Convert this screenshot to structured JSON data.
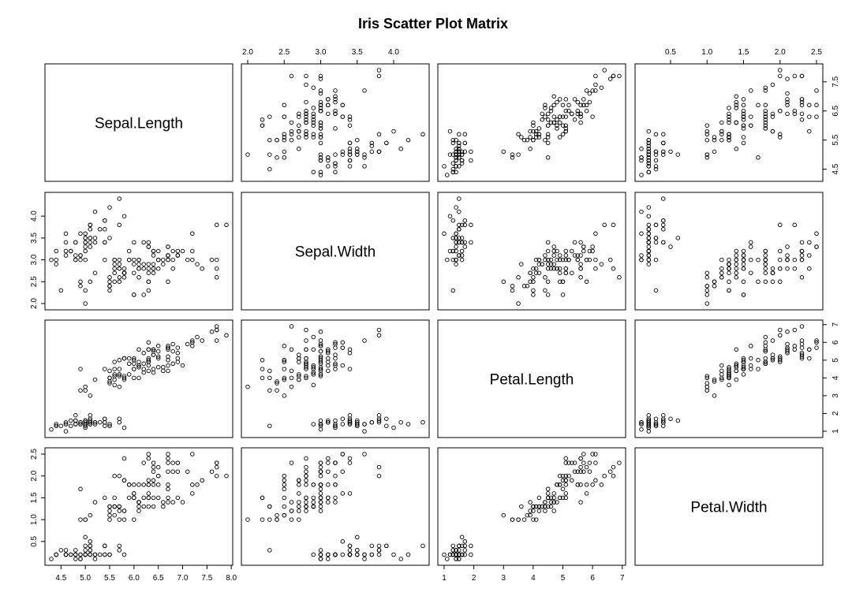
{
  "chart_data": {
    "type": "scatter",
    "title": "Iris Scatter Plot Matrix",
    "variables": [
      "Sepal.Length",
      "Sepal.Width",
      "Petal.Length",
      "Petal.Width"
    ],
    "ranges": [
      [
        4.3,
        7.9
      ],
      [
        2.0,
        4.4
      ],
      [
        1.0,
        6.9
      ],
      [
        0.1,
        2.5
      ]
    ],
    "ticks": [
      [
        4.5,
        5.0,
        5.5,
        6.0,
        6.5,
        7.0,
        7.5,
        8.0
      ],
      [
        2.0,
        2.5,
        3.0,
        3.5,
        4.0
      ],
      [
        1,
        2,
        3,
        4,
        5,
        6,
        7
      ],
      [
        0.5,
        1.0,
        1.5,
        2.0,
        2.5
      ]
    ],
    "tick_labels": [
      [
        "4.5",
        "5.0",
        "5.5",
        "6.0",
        "6.5",
        "7.0",
        "7.5",
        "8.0"
      ],
      [
        "2.0",
        "2.5",
        "3.0",
        "3.5",
        "4.0"
      ],
      [
        "1",
        "2",
        "3",
        "4",
        "5",
        "6",
        "7"
      ],
      [
        "0.5",
        "1.0",
        "1.5",
        "2.0",
        "2.5"
      ]
    ],
    "axis_sides": {
      "bottom": [
        0,
        2
      ],
      "top": [
        1,
        3
      ],
      "left": [
        1,
        3
      ],
      "right": [
        0,
        2
      ]
    },
    "right_ticks_sepal_length": [
      4.5,
      5.5,
      6.5,
      7.5
    ],
    "right_tick_labels_sepal_length": [
      "4.5",
      "5.5",
      "6.5",
      "7.5"
    ],
    "top_ticks_sepal_width": [
      2.0,
      2.5,
      3.0,
      3.5,
      4.0
    ],
    "top_tick_labels_sepal_width": [
      "2.0",
      "2.5",
      "3.0",
      "3.5",
      "4.0"
    ],
    "left_ticks_sepal_width": [
      2.0,
      2.5,
      3.0,
      3.5,
      4.0
    ],
    "left_tick_labels_sepal_width": [
      "2.0",
      "2.5",
      "3.0",
      "3.5",
      "4.0"
    ],
    "grid": false,
    "observations": [
      [
        5.1,
        3.5,
        1.4,
        0.2
      ],
      [
        4.9,
        3.0,
        1.4,
        0.2
      ],
      [
        4.7,
        3.2,
        1.3,
        0.2
      ],
      [
        4.6,
        3.1,
        1.5,
        0.2
      ],
      [
        5.0,
        3.6,
        1.4,
        0.2
      ],
      [
        5.4,
        3.9,
        1.7,
        0.4
      ],
      [
        4.6,
        3.4,
        1.4,
        0.3
      ],
      [
        5.0,
        3.4,
        1.5,
        0.2
      ],
      [
        4.4,
        2.9,
        1.4,
        0.2
      ],
      [
        4.9,
        3.1,
        1.5,
        0.1
      ],
      [
        5.4,
        3.7,
        1.5,
        0.2
      ],
      [
        4.8,
        3.4,
        1.6,
        0.2
      ],
      [
        4.8,
        3.0,
        1.4,
        0.1
      ],
      [
        4.3,
        3.0,
        1.1,
        0.1
      ],
      [
        5.8,
        4.0,
        1.2,
        0.2
      ],
      [
        5.7,
        4.4,
        1.5,
        0.4
      ],
      [
        5.4,
        3.9,
        1.3,
        0.4
      ],
      [
        5.1,
        3.5,
        1.4,
        0.3
      ],
      [
        5.7,
        3.8,
        1.7,
        0.3
      ],
      [
        5.1,
        3.8,
        1.5,
        0.3
      ],
      [
        5.4,
        3.4,
        1.7,
        0.2
      ],
      [
        5.1,
        3.7,
        1.5,
        0.4
      ],
      [
        4.6,
        3.6,
        1.0,
        0.2
      ],
      [
        5.1,
        3.3,
        1.7,
        0.5
      ],
      [
        4.8,
        3.4,
        1.9,
        0.2
      ],
      [
        5.0,
        3.0,
        1.6,
        0.2
      ],
      [
        5.0,
        3.4,
        1.6,
        0.4
      ],
      [
        5.2,
        3.5,
        1.5,
        0.2
      ],
      [
        5.2,
        3.4,
        1.4,
        0.2
      ],
      [
        4.7,
        3.2,
        1.6,
        0.2
      ],
      [
        4.8,
        3.1,
        1.6,
        0.2
      ],
      [
        5.4,
        3.4,
        1.5,
        0.4
      ],
      [
        5.2,
        4.1,
        1.5,
        0.1
      ],
      [
        5.5,
        4.2,
        1.4,
        0.2
      ],
      [
        4.9,
        3.1,
        1.5,
        0.2
      ],
      [
        5.0,
        3.2,
        1.2,
        0.2
      ],
      [
        5.5,
        3.5,
        1.3,
        0.2
      ],
      [
        4.9,
        3.6,
        1.4,
        0.1
      ],
      [
        4.4,
        3.0,
        1.3,
        0.2
      ],
      [
        5.1,
        3.4,
        1.5,
        0.2
      ],
      [
        5.0,
        3.5,
        1.3,
        0.3
      ],
      [
        4.5,
        2.3,
        1.3,
        0.3
      ],
      [
        4.4,
        3.2,
        1.3,
        0.2
      ],
      [
        5.0,
        3.5,
        1.6,
        0.6
      ],
      [
        5.1,
        3.8,
        1.9,
        0.4
      ],
      [
        4.8,
        3.0,
        1.4,
        0.3
      ],
      [
        5.1,
        3.8,
        1.6,
        0.2
      ],
      [
        4.6,
        3.2,
        1.4,
        0.2
      ],
      [
        5.3,
        3.7,
        1.5,
        0.2
      ],
      [
        5.0,
        3.3,
        1.4,
        0.2
      ],
      [
        7.0,
        3.2,
        4.7,
        1.4
      ],
      [
        6.4,
        3.2,
        4.5,
        1.5
      ],
      [
        6.9,
        3.1,
        4.9,
        1.5
      ],
      [
        5.5,
        2.3,
        4.0,
        1.3
      ],
      [
        6.5,
        2.8,
        4.6,
        1.5
      ],
      [
        5.7,
        2.8,
        4.5,
        1.3
      ],
      [
        6.3,
        3.3,
        4.7,
        1.6
      ],
      [
        4.9,
        2.4,
        3.3,
        1.0
      ],
      [
        6.6,
        2.9,
        4.6,
        1.3
      ],
      [
        5.2,
        2.7,
        3.9,
        1.4
      ],
      [
        5.0,
        2.0,
        3.5,
        1.0
      ],
      [
        5.9,
        3.0,
        4.2,
        1.5
      ],
      [
        6.0,
        2.2,
        4.0,
        1.0
      ],
      [
        6.1,
        2.9,
        4.7,
        1.4
      ],
      [
        5.6,
        2.9,
        3.6,
        1.3
      ],
      [
        6.7,
        3.1,
        4.4,
        1.4
      ],
      [
        5.6,
        3.0,
        4.5,
        1.5
      ],
      [
        5.8,
        2.7,
        4.1,
        1.0
      ],
      [
        6.2,
        2.2,
        4.5,
        1.5
      ],
      [
        5.6,
        2.5,
        3.9,
        1.1
      ],
      [
        5.9,
        3.2,
        4.8,
        1.8
      ],
      [
        6.1,
        2.8,
        4.0,
        1.3
      ],
      [
        6.3,
        2.5,
        4.9,
        1.5
      ],
      [
        6.1,
        2.8,
        4.7,
        1.2
      ],
      [
        6.4,
        2.9,
        4.3,
        1.3
      ],
      [
        6.6,
        3.0,
        4.4,
        1.4
      ],
      [
        6.8,
        2.8,
        4.8,
        1.4
      ],
      [
        6.7,
        3.0,
        5.0,
        1.7
      ],
      [
        6.0,
        2.9,
        4.5,
        1.5
      ],
      [
        5.7,
        2.6,
        3.5,
        1.0
      ],
      [
        5.5,
        2.4,
        3.8,
        1.1
      ],
      [
        5.5,
        2.4,
        3.7,
        1.0
      ],
      [
        5.8,
        2.7,
        3.9,
        1.2
      ],
      [
        6.0,
        2.7,
        5.1,
        1.6
      ],
      [
        5.4,
        3.0,
        4.5,
        1.5
      ],
      [
        6.0,
        3.4,
        4.5,
        1.6
      ],
      [
        6.7,
        3.1,
        4.7,
        1.5
      ],
      [
        6.3,
        2.3,
        4.4,
        1.3
      ],
      [
        5.6,
        3.0,
        4.1,
        1.3
      ],
      [
        5.5,
        2.5,
        4.0,
        1.3
      ],
      [
        5.5,
        2.6,
        4.4,
        1.2
      ],
      [
        6.1,
        3.0,
        4.6,
        1.4
      ],
      [
        5.8,
        2.6,
        4.0,
        1.2
      ],
      [
        5.0,
        2.3,
        3.3,
        1.0
      ],
      [
        5.6,
        2.7,
        4.2,
        1.3
      ],
      [
        5.7,
        3.0,
        4.2,
        1.2
      ],
      [
        5.7,
        2.9,
        4.2,
        1.3
      ],
      [
        6.2,
        2.9,
        4.3,
        1.3
      ],
      [
        5.1,
        2.5,
        3.0,
        1.1
      ],
      [
        5.7,
        2.8,
        4.1,
        1.3
      ],
      [
        6.3,
        3.3,
        6.0,
        2.5
      ],
      [
        5.8,
        2.7,
        5.1,
        1.9
      ],
      [
        7.1,
        3.0,
        5.9,
        2.1
      ],
      [
        6.3,
        2.9,
        5.6,
        1.8
      ],
      [
        6.5,
        3.0,
        5.8,
        2.2
      ],
      [
        7.6,
        3.0,
        6.6,
        2.1
      ],
      [
        4.9,
        2.5,
        4.5,
        1.7
      ],
      [
        7.3,
        2.9,
        6.3,
        1.8
      ],
      [
        6.7,
        2.5,
        5.8,
        1.8
      ],
      [
        7.2,
        3.6,
        6.1,
        2.5
      ],
      [
        6.5,
        3.2,
        5.1,
        2.0
      ],
      [
        6.4,
        2.7,
        5.3,
        1.9
      ],
      [
        6.8,
        3.0,
        5.5,
        2.1
      ],
      [
        5.7,
        2.5,
        5.0,
        2.0
      ],
      [
        5.8,
        2.8,
        5.1,
        2.4
      ],
      [
        6.4,
        3.2,
        5.3,
        2.3
      ],
      [
        6.5,
        3.0,
        5.5,
        1.8
      ],
      [
        7.7,
        3.8,
        6.7,
        2.2
      ],
      [
        7.7,
        2.6,
        6.9,
        2.3
      ],
      [
        6.0,
        2.2,
        5.0,
        1.5
      ],
      [
        6.9,
        3.2,
        5.7,
        2.3
      ],
      [
        5.6,
        2.8,
        4.9,
        2.0
      ],
      [
        7.7,
        2.8,
        6.7,
        2.0
      ],
      [
        6.3,
        2.7,
        4.9,
        1.8
      ],
      [
        6.7,
        3.3,
        5.7,
        2.1
      ],
      [
        7.2,
        3.2,
        6.0,
        1.8
      ],
      [
        6.2,
        2.8,
        4.8,
        1.8
      ],
      [
        6.1,
        3.0,
        4.9,
        1.8
      ],
      [
        6.4,
        2.8,
        5.6,
        2.1
      ],
      [
        7.2,
        3.0,
        5.8,
        1.6
      ],
      [
        7.4,
        2.8,
        6.1,
        1.9
      ],
      [
        7.9,
        3.8,
        6.4,
        2.0
      ],
      [
        6.4,
        2.8,
        5.6,
        2.2
      ],
      [
        6.3,
        2.8,
        5.1,
        1.5
      ],
      [
        6.1,
        2.6,
        5.6,
        1.4
      ],
      [
        7.7,
        3.0,
        6.1,
        2.3
      ],
      [
        6.3,
        3.4,
        5.6,
        2.4
      ],
      [
        6.4,
        3.1,
        5.5,
        1.8
      ],
      [
        6.0,
        3.0,
        4.8,
        1.8
      ],
      [
        6.9,
        3.1,
        5.4,
        2.1
      ],
      [
        6.7,
        3.1,
        5.6,
        2.4
      ],
      [
        6.9,
        3.1,
        5.1,
        2.3
      ],
      [
        5.8,
        2.7,
        5.1,
        1.9
      ],
      [
        6.8,
        3.2,
        5.9,
        2.3
      ],
      [
        6.7,
        3.3,
        5.7,
        2.5
      ],
      [
        6.7,
        3.0,
        5.2,
        2.3
      ],
      [
        6.3,
        2.5,
        5.0,
        1.9
      ],
      [
        6.5,
        3.0,
        5.2,
        2.0
      ],
      [
        6.2,
        3.4,
        5.4,
        2.3
      ],
      [
        5.9,
        3.0,
        5.1,
        1.8
      ]
    ]
  }
}
